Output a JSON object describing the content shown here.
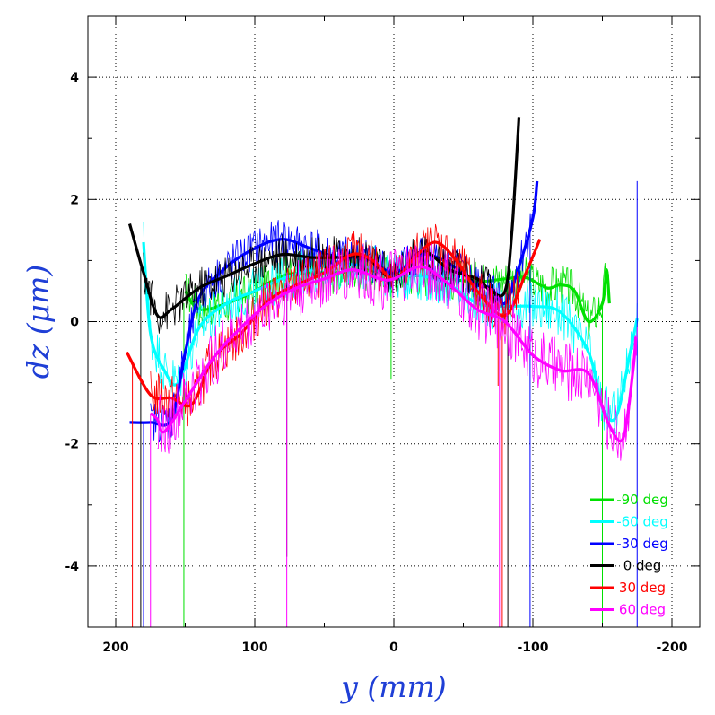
{
  "chart_data": {
    "type": "line",
    "title": "",
    "xlabel": "y (mm)",
    "ylabel": "dz (μm)",
    "xlim": [
      220,
      -220
    ],
    "ylim": [
      -5,
      5
    ],
    "x_reversed": true,
    "xticks": [
      200,
      100,
      0,
      -100,
      -200
    ],
    "yticks": [
      -4,
      -2,
      0,
      2,
      4
    ],
    "grid": true,
    "legend_position": "bottom-right",
    "series": [
      {
        "name": "-90 deg",
        "color": "#00e000",
        "smooth": [
          [
            150,
            0.5
          ],
          [
            140,
            0.2
          ],
          [
            120,
            0.3
          ],
          [
            100,
            0.5
          ],
          [
            80,
            0.75
          ],
          [
            60,
            0.8
          ],
          [
            40,
            0.8
          ],
          [
            20,
            0.85
          ],
          [
            0,
            0.75
          ],
          [
            -20,
            0.75
          ],
          [
            -40,
            0.7
          ],
          [
            -60,
            0.65
          ],
          [
            -80,
            0.7
          ],
          [
            -95,
            0.72
          ],
          [
            -110,
            0.55
          ],
          [
            -120,
            0.6
          ],
          [
            -130,
            0.5
          ],
          [
            -140,
            0.0
          ],
          [
            -150,
            0.3
          ],
          [
            -153,
            0.85
          ],
          [
            -155,
            0.3
          ]
        ],
        "raw_range": [
          150,
          -155
        ],
        "raw_amp": 0.35,
        "spikes": [
          [
            151,
            -5
          ],
          [
            2,
            -0.95
          ],
          [
            -150,
            -5
          ]
        ]
      },
      {
        "name": "-60 deg",
        "color": "#00ffff",
        "smooth": [
          [
            180,
            1.3
          ],
          [
            175,
            -0.2
          ],
          [
            165,
            -0.8
          ],
          [
            155,
            -1.0
          ],
          [
            140,
            -0.1
          ],
          [
            120,
            0.3
          ],
          [
            100,
            0.5
          ],
          [
            80,
            0.7
          ],
          [
            60,
            0.85
          ],
          [
            40,
            0.95
          ],
          [
            20,
            0.9
          ],
          [
            0,
            0.75
          ],
          [
            -20,
            0.75
          ],
          [
            -40,
            0.6
          ],
          [
            -60,
            0.3
          ],
          [
            -80,
            0.25
          ],
          [
            -100,
            0.25
          ],
          [
            -120,
            0.15
          ],
          [
            -140,
            -0.5
          ],
          [
            -150,
            -1.4
          ],
          [
            -160,
            -1.55
          ],
          [
            -170,
            -0.5
          ],
          [
            -175,
            0.05
          ]
        ],
        "raw_range": [
          180,
          -175
        ],
        "raw_amp": 0.4,
        "spikes": []
      },
      {
        "name": "-30 deg",
        "color": "#0000ff",
        "smooth": [
          [
            190,
            -1.65
          ],
          [
            175,
            -1.65
          ],
          [
            160,
            -1.6
          ],
          [
            150,
            -0.5
          ],
          [
            140,
            0.4
          ],
          [
            120,
            0.9
          ],
          [
            100,
            1.2
          ],
          [
            80,
            1.35
          ],
          [
            60,
            1.2
          ],
          [
            40,
            1.05
          ],
          [
            20,
            1.05
          ],
          [
            0,
            0.8
          ],
          [
            -20,
            1.1
          ],
          [
            -40,
            0.95
          ],
          [
            -60,
            0.6
          ],
          [
            -70,
            0.55
          ],
          [
            -80,
            0.3
          ],
          [
            -90,
            0.9
          ],
          [
            -100,
            1.7
          ],
          [
            -103,
            2.3
          ]
        ],
        "raw_range": [
          175,
          -100
        ],
        "raw_amp": 0.35,
        "spikes": [
          [
            180,
            -5
          ],
          [
            -98,
            -5
          ],
          [
            -175,
            -5
          ]
        ]
      },
      {
        "name": "0 deg",
        "color": "#000000",
        "smooth": [
          [
            190,
            1.6
          ],
          [
            180,
            0.8
          ],
          [
            170,
            0.1
          ],
          [
            160,
            0.2
          ],
          [
            140,
            0.55
          ],
          [
            120,
            0.75
          ],
          [
            100,
            0.95
          ],
          [
            80,
            1.1
          ],
          [
            60,
            1.05
          ],
          [
            40,
            1.05
          ],
          [
            20,
            1.05
          ],
          [
            0,
            0.7
          ],
          [
            -20,
            1.15
          ],
          [
            -40,
            0.85
          ],
          [
            -60,
            0.7
          ],
          [
            -70,
            0.5
          ],
          [
            -80,
            0.5
          ],
          [
            -85,
            1.5
          ],
          [
            -90,
            3.35
          ]
        ],
        "raw_range": [
          180,
          -75
        ],
        "raw_amp": 0.35,
        "spikes": [
          [
            182,
            -5
          ],
          [
            77,
            -3.85
          ],
          [
            -82,
            -5
          ]
        ]
      },
      {
        "name": "30 deg",
        "color": "#ff0000",
        "smooth": [
          [
            192,
            -0.5
          ],
          [
            175,
            -1.2
          ],
          [
            160,
            -1.25
          ],
          [
            145,
            -1.35
          ],
          [
            130,
            -0.6
          ],
          [
            110,
            -0.2
          ],
          [
            90,
            0.35
          ],
          [
            70,
            0.6
          ],
          [
            50,
            0.8
          ],
          [
            30,
            1.1
          ],
          [
            15,
            1.0
          ],
          [
            0,
            0.7
          ],
          [
            -15,
            1.05
          ],
          [
            -30,
            1.3
          ],
          [
            -45,
            1.0
          ],
          [
            -60,
            0.5
          ],
          [
            -80,
            0.1
          ],
          [
            -95,
            0.8
          ],
          [
            -105,
            1.35
          ]
        ],
        "raw_range": [
          175,
          -90
        ],
        "raw_amp": 0.4,
        "spikes": [
          [
            188,
            -5
          ],
          [
            -75,
            -1.05
          ],
          [
            -78,
            -5
          ]
        ]
      },
      {
        "name": "60 deg",
        "color": "#ff00ff",
        "smooth": [
          [
            175,
            -1.5
          ],
          [
            170,
            -1.6
          ],
          [
            165,
            -1.8
          ],
          [
            150,
            -1.3
          ],
          [
            130,
            -0.6
          ],
          [
            110,
            -0.1
          ],
          [
            90,
            0.3
          ],
          [
            70,
            0.55
          ],
          [
            50,
            0.7
          ],
          [
            30,
            0.85
          ],
          [
            10,
            0.7
          ],
          [
            0,
            0.7
          ],
          [
            -20,
            0.9
          ],
          [
            -40,
            0.6
          ],
          [
            -60,
            0.2
          ],
          [
            -80,
            0.0
          ],
          [
            -100,
            -0.55
          ],
          [
            -120,
            -0.8
          ],
          [
            -140,
            -0.85
          ],
          [
            -155,
            -1.7
          ],
          [
            -165,
            -1.9
          ],
          [
            -172,
            -0.8
          ],
          [
            -174,
            -0.25
          ]
        ],
        "raw_range": [
          170,
          -175
        ],
        "raw_amp": 0.5,
        "spikes": [
          [
            175,
            -5
          ],
          [
            77,
            -5
          ],
          [
            -76,
            -5
          ]
        ]
      }
    ]
  }
}
